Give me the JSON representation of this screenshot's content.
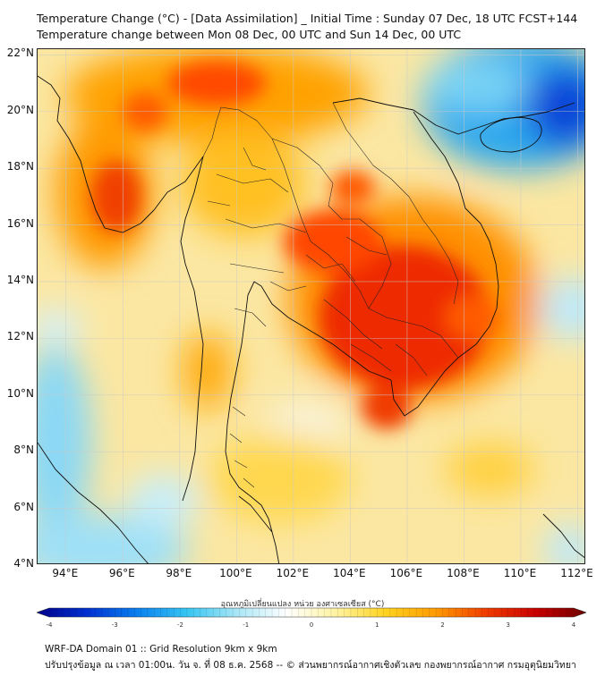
{
  "header": {
    "title_line1": "Temperature Change (°C) - [Data Assimilation] _ Initial Time : Sunday 07 Dec, 18 UTC FCST+144",
    "title_line2": "Temperature change between Mon 08 Dec, 00 UTC and Sun 14 Dec, 00 UTC"
  },
  "map": {
    "lat_labels": [
      "22°N",
      "20°N",
      "18°N",
      "16°N",
      "14°N",
      "12°N",
      "10°N",
      "8°N",
      "6°N",
      "4°N"
    ],
    "lon_labels": [
      "94°E",
      "96°E",
      "98°E",
      "100°E",
      "102°E",
      "104°E",
      "106°E",
      "108°E",
      "110°E",
      "112°E"
    ],
    "extent": {
      "lon_min": 93,
      "lon_max": 112.3,
      "lat_min": 4,
      "lat_max": 22.2
    },
    "grid": true
  },
  "colorbar": {
    "title": "อุณหภูมิเปลี่ยนแปลง หน่วย องศาเซลเซียส (°C)",
    "tick_labels": [
      "-4",
      "-3",
      "-2",
      "-1",
      "0",
      "1",
      "2",
      "3",
      "4"
    ],
    "colors": [
      "#00008b",
      "#0030d0",
      "#0a7ff0",
      "#34c5f2",
      "#a8e6f6",
      "#ffffff",
      "#fff3a0",
      "#ffd21e",
      "#ff9a00",
      "#f03c00",
      "#c80000",
      "#6e0000"
    ]
  },
  "footer": {
    "line1": "WRF-DA Domain 01 :: Grid Resolution 9km x 9km",
    "line2": "ปรับปรุงข้อมูล ณ เวลา 01:00น. วัน จ. ที่ 08 ธ.ค. 2568 -- © ส่วนพยากรณ์อากาศเชิงตัวเลข กองพยากรณ์อากาศ กรมอุตุนิยมวิทยา"
  }
}
